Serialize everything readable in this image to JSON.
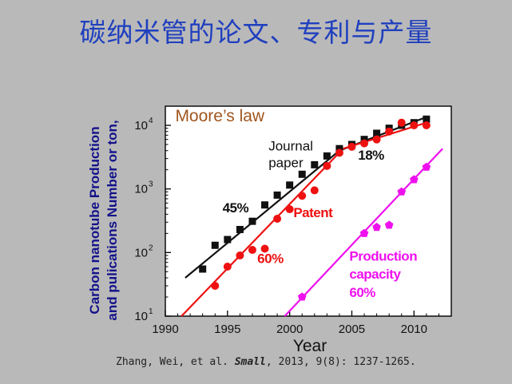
{
  "page": {
    "title": "碳纳米管的论文、专利与产量",
    "citation": {
      "authors": "Zhang, Wei, et al.",
      "journal": "Small",
      "details": ", 2013, 9(8): 1237-1265."
    }
  },
  "chart_data": {
    "type": "scatter",
    "yscale": "log",
    "xlim": [
      1990,
      2013
    ],
    "ylim": [
      10,
      20000
    ],
    "xlabel": "Year",
    "ylabel_lines": [
      "Carbon nanotube Production",
      "and pulications Number or ton,"
    ],
    "xticks": [
      1990,
      1995,
      2000,
      2005,
      2010
    ],
    "yticks": [
      {
        "value": 10,
        "base": "10",
        "exp": "1"
      },
      {
        "value": 100,
        "base": "10",
        "exp": "2"
      },
      {
        "value": 1000,
        "base": "10",
        "exp": "3"
      },
      {
        "value": 10000,
        "base": "10",
        "exp": "4"
      }
    ],
    "series": [
      {
        "name": "Journal paper",
        "marker": "square",
        "color": "#111111",
        "x": [
          1993,
          1994,
          1995,
          1996,
          1997,
          1998,
          1999,
          2000,
          2001,
          2002,
          2003,
          2004,
          2005,
          2006,
          2007,
          2008,
          2009,
          2010,
          2011
        ],
        "y": [
          55,
          130,
          160,
          230,
          310,
          560,
          800,
          1150,
          1700,
          2400,
          3300,
          4300,
          5000,
          6000,
          7500,
          9000,
          10000,
          11000,
          12500
        ]
      },
      {
        "name": "Patent",
        "marker": "circle",
        "color": "#ee1111",
        "x": [
          1994,
          1995,
          1996,
          1997,
          1998,
          1999,
          2000,
          2001,
          2002,
          2003,
          2004,
          2005,
          2006,
          2007,
          2008,
          2009,
          2010,
          2011
        ],
        "y": [
          30,
          60,
          90,
          110,
          115,
          340,
          480,
          780,
          950,
          2300,
          3700,
          4600,
          5200,
          6000,
          8000,
          11000,
          10000,
          10000
        ]
      },
      {
        "name": "Production capacity",
        "marker": "pentagon",
        "color": "#ee11ee",
        "x": [
          2001,
          2006,
          2007,
          2008,
          2009,
          2010,
          2011
        ],
        "y": [
          20,
          200,
          250,
          270,
          900,
          1400,
          2200
        ]
      }
    ],
    "trend_lines": [
      {
        "color": "#111111",
        "points": [
          [
            1991.6,
            40
          ],
          [
            2004,
            4000
          ],
          [
            2011,
            13500
          ]
        ]
      },
      {
        "color": "#ee1111",
        "points": [
          [
            1991.3,
            10
          ],
          [
            2004.3,
            4300
          ],
          [
            2011,
            11000
          ]
        ]
      },
      {
        "color": "#ee11ee",
        "points": [
          [
            1999.6,
            10
          ],
          [
            2012.3,
            4300
          ]
        ]
      }
    ],
    "annotations": [
      {
        "text": "Moore’s law",
        "color": "#a0561e",
        "x": 1990.8,
        "y": 11500,
        "size": 21,
        "weight": "normal",
        "font": "sans"
      },
      {
        "text": "Journal",
        "color": "#111111",
        "x": 1998.3,
        "y": 4000,
        "size": 17,
        "weight": "normal"
      },
      {
        "text": "paper",
        "color": "#111111",
        "x": 1998.3,
        "y": 2200,
        "size": 17,
        "weight": "normal"
      },
      {
        "text": "18%",
        "color": "#111111",
        "x": 2005.5,
        "y": 2900,
        "size": 17,
        "weight": "bold"
      },
      {
        "text": "45%",
        "color": "#111111",
        "x": 1994.6,
        "y": 430,
        "size": 17,
        "weight": "bold"
      },
      {
        "text": "Patent",
        "color": "#ee1111",
        "x": 2000.3,
        "y": 360,
        "size": 17,
        "weight": "bold"
      },
      {
        "text": "60%",
        "color": "#ee1111",
        "x": 1997.4,
        "y": 68,
        "size": 17,
        "weight": "bold"
      },
      {
        "text": "Production",
        "color": "#ee11ee",
        "x": 2004.8,
        "y": 75,
        "size": 17,
        "weight": "bold"
      },
      {
        "text": "capacity",
        "color": "#ee11ee",
        "x": 2004.8,
        "y": 39,
        "size": 17,
        "weight": "bold"
      },
      {
        "text": "60%",
        "color": "#ee11ee",
        "x": 2004.8,
        "y": 20,
        "size": 17,
        "weight": "bold"
      }
    ]
  }
}
